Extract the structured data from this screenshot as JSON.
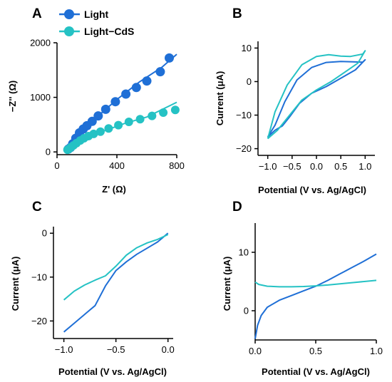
{
  "colors": {
    "light": "#1f6fd6",
    "cds": "#25c2c4"
  },
  "chart_data": [
    {
      "panel": "A",
      "type": "line",
      "xlabel": "Z' (Ω)",
      "ylabel": "−Z'' (Ω)",
      "xlim": [
        0,
        800
      ],
      "ylim": [
        -50,
        2000
      ],
      "xticks": [
        0,
        400,
        800
      ],
      "yticks": [
        0,
        1000,
        2000
      ],
      "legend": "top-left",
      "series": [
        {
          "name": "Light",
          "color": "#1f6fd6",
          "points": [
            [
              75,
              50
            ],
            [
              90,
              80
            ],
            [
              105,
              150
            ],
            [
              125,
              250
            ],
            [
              150,
              350
            ],
            [
              175,
              420
            ],
            [
              200,
              480
            ],
            [
              235,
              560
            ],
            [
              275,
              660
            ],
            [
              325,
              780
            ],
            [
              390,
              920
            ],
            [
              460,
              1060
            ],
            [
              530,
              1180
            ],
            [
              600,
              1300
            ],
            [
              690,
              1470
            ],
            [
              750,
              1720
            ]
          ],
          "fit": [
            [
              80,
              50
            ],
            [
              150,
              330
            ],
            [
              250,
              600
            ],
            [
              400,
              960
            ],
            [
              550,
              1280
            ],
            [
              700,
              1550
            ],
            [
              800,
              1790
            ]
          ]
        },
        {
          "name": "Light−CdS",
          "color": "#25c2c4",
          "points": [
            [
              70,
              40
            ],
            [
              82,
              60
            ],
            [
              95,
              90
            ],
            [
              110,
              120
            ],
            [
              130,
              160
            ],
            [
              155,
              210
            ],
            [
              180,
              250
            ],
            [
              210,
              290
            ],
            [
              245,
              330
            ],
            [
              290,
              370
            ],
            [
              345,
              430
            ],
            [
              410,
              490
            ],
            [
              480,
              550
            ],
            [
              555,
              600
            ],
            [
              635,
              660
            ],
            [
              710,
              720
            ],
            [
              790,
              770
            ]
          ],
          "fit": [
            [
              75,
              40
            ],
            [
              150,
              200
            ],
            [
              300,
              370
            ],
            [
              450,
              520
            ],
            [
              600,
              640
            ],
            [
              800,
              910
            ]
          ]
        }
      ]
    },
    {
      "panel": "B",
      "type": "line",
      "xlabel": "Potential (V vs. Ag/AgCl)",
      "ylabel": "Current (μA)",
      "xlim": [
        -1.2,
        1.2
      ],
      "ylim": [
        -22,
        12
      ],
      "xticks": [
        -1.0,
        -0.5,
        0.0,
        0.5,
        1.0
      ],
      "yticks": [
        -20,
        -10,
        0,
        10
      ],
      "series": [
        {
          "name": "",
          "color": "#1f6fd6",
          "points": [
            [
              -1.0,
              -16.5
            ],
            [
              -0.85,
              -14.5
            ],
            [
              -0.7,
              -13.2
            ],
            [
              -0.55,
              -10.5
            ],
            [
              -0.35,
              -6.5
            ],
            [
              -0.1,
              -3.5
            ],
            [
              0.2,
              -1.5
            ],
            [
              0.5,
              1
            ],
            [
              0.8,
              3.5
            ],
            [
              1.0,
              6.5
            ],
            [
              0.95,
              5.8
            ],
            [
              0.75,
              5.9
            ],
            [
              0.5,
              6
            ],
            [
              0.2,
              5.7
            ],
            [
              -0.1,
              4.2
            ],
            [
              -0.4,
              0.5
            ],
            [
              -0.65,
              -6
            ],
            [
              -0.85,
              -13
            ],
            [
              -1.0,
              -16.5
            ]
          ]
        },
        {
          "name": "",
          "color": "#25c2c4",
          "points": [
            [
              -1.0,
              -17
            ],
            [
              -0.8,
              -14.5
            ],
            [
              -0.55,
              -10
            ],
            [
              -0.3,
              -5.5
            ],
            [
              0.0,
              -2.5
            ],
            [
              0.3,
              0
            ],
            [
              0.6,
              3
            ],
            [
              0.85,
              5.5
            ],
            [
              1.0,
              9.2
            ],
            [
              0.95,
              8.2
            ],
            [
              0.7,
              7.5
            ],
            [
              0.5,
              7.6
            ],
            [
              0.25,
              8
            ],
            [
              0.0,
              7.5
            ],
            [
              -0.3,
              5
            ],
            [
              -0.6,
              -1
            ],
            [
              -0.85,
              -9
            ],
            [
              -1.0,
              -17
            ]
          ]
        }
      ]
    },
    {
      "panel": "C",
      "type": "line",
      "xlabel": "Potential (V vs. Ag/AgCl)",
      "ylabel": "Current (μA)",
      "xlim": [
        -1.1,
        0.05
      ],
      "ylim": [
        -24,
        1.5
      ],
      "xticks": [
        -1.0,
        -0.5,
        0.0
      ],
      "yticks": [
        -20,
        -10,
        0
      ],
      "series": [
        {
          "name": "",
          "color": "#1f6fd6",
          "points": [
            [
              -1.0,
              -22.5
            ],
            [
              -0.9,
              -20.5
            ],
            [
              -0.8,
              -18.5
            ],
            [
              -0.7,
              -16.5
            ],
            [
              -0.6,
              -12
            ],
            [
              -0.5,
              -8.5
            ],
            [
              -0.4,
              -6.5
            ],
            [
              -0.3,
              -4.8
            ],
            [
              -0.2,
              -3.4
            ],
            [
              -0.1,
              -2
            ],
            [
              0.0,
              0
            ]
          ]
        },
        {
          "name": "",
          "color": "#25c2c4",
          "points": [
            [
              -1.0,
              -15.2
            ],
            [
              -0.9,
              -13.2
            ],
            [
              -0.8,
              -11.8
            ],
            [
              -0.7,
              -10.7
            ],
            [
              -0.6,
              -9.7
            ],
            [
              -0.5,
              -7.5
            ],
            [
              -0.4,
              -5
            ],
            [
              -0.3,
              -3.3
            ],
            [
              -0.2,
              -2.2
            ],
            [
              -0.1,
              -1.4
            ],
            [
              0.0,
              -0.3
            ]
          ]
        }
      ]
    },
    {
      "panel": "D",
      "type": "line",
      "xlabel": "Potential (V vs. Ag/AgCl)",
      "ylabel": "Current (μA)",
      "xlim": [
        0.0,
        1.0
      ],
      "ylim": [
        -5,
        15
      ],
      "xticks": [
        0.0,
        0.5,
        1.0
      ],
      "yticks": [
        0,
        10
      ],
      "series": [
        {
          "name": "",
          "color": "#1f6fd6",
          "points": [
            [
              0.0,
              -4.8
            ],
            [
              0.02,
              -2.5
            ],
            [
              0.05,
              -0.8
            ],
            [
              0.1,
              0.6
            ],
            [
              0.2,
              1.8
            ],
            [
              0.3,
              2.6
            ],
            [
              0.4,
              3.4
            ],
            [
              0.5,
              4.2
            ],
            [
              0.6,
              5.2
            ],
            [
              0.7,
              6.3
            ],
            [
              0.8,
              7.4
            ],
            [
              0.9,
              8.5
            ],
            [
              1.0,
              9.7
            ]
          ]
        },
        {
          "name": "",
          "color": "#25c2c4",
          "points": [
            [
              0.0,
              4.9
            ],
            [
              0.03,
              4.5
            ],
            [
              0.1,
              4.2
            ],
            [
              0.2,
              4.1
            ],
            [
              0.3,
              4.1
            ],
            [
              0.4,
              4.15
            ],
            [
              0.5,
              4.25
            ],
            [
              0.6,
              4.4
            ],
            [
              0.7,
              4.6
            ],
            [
              0.8,
              4.8
            ],
            [
              0.9,
              5.0
            ],
            [
              1.0,
              5.2
            ]
          ]
        }
      ]
    }
  ]
}
